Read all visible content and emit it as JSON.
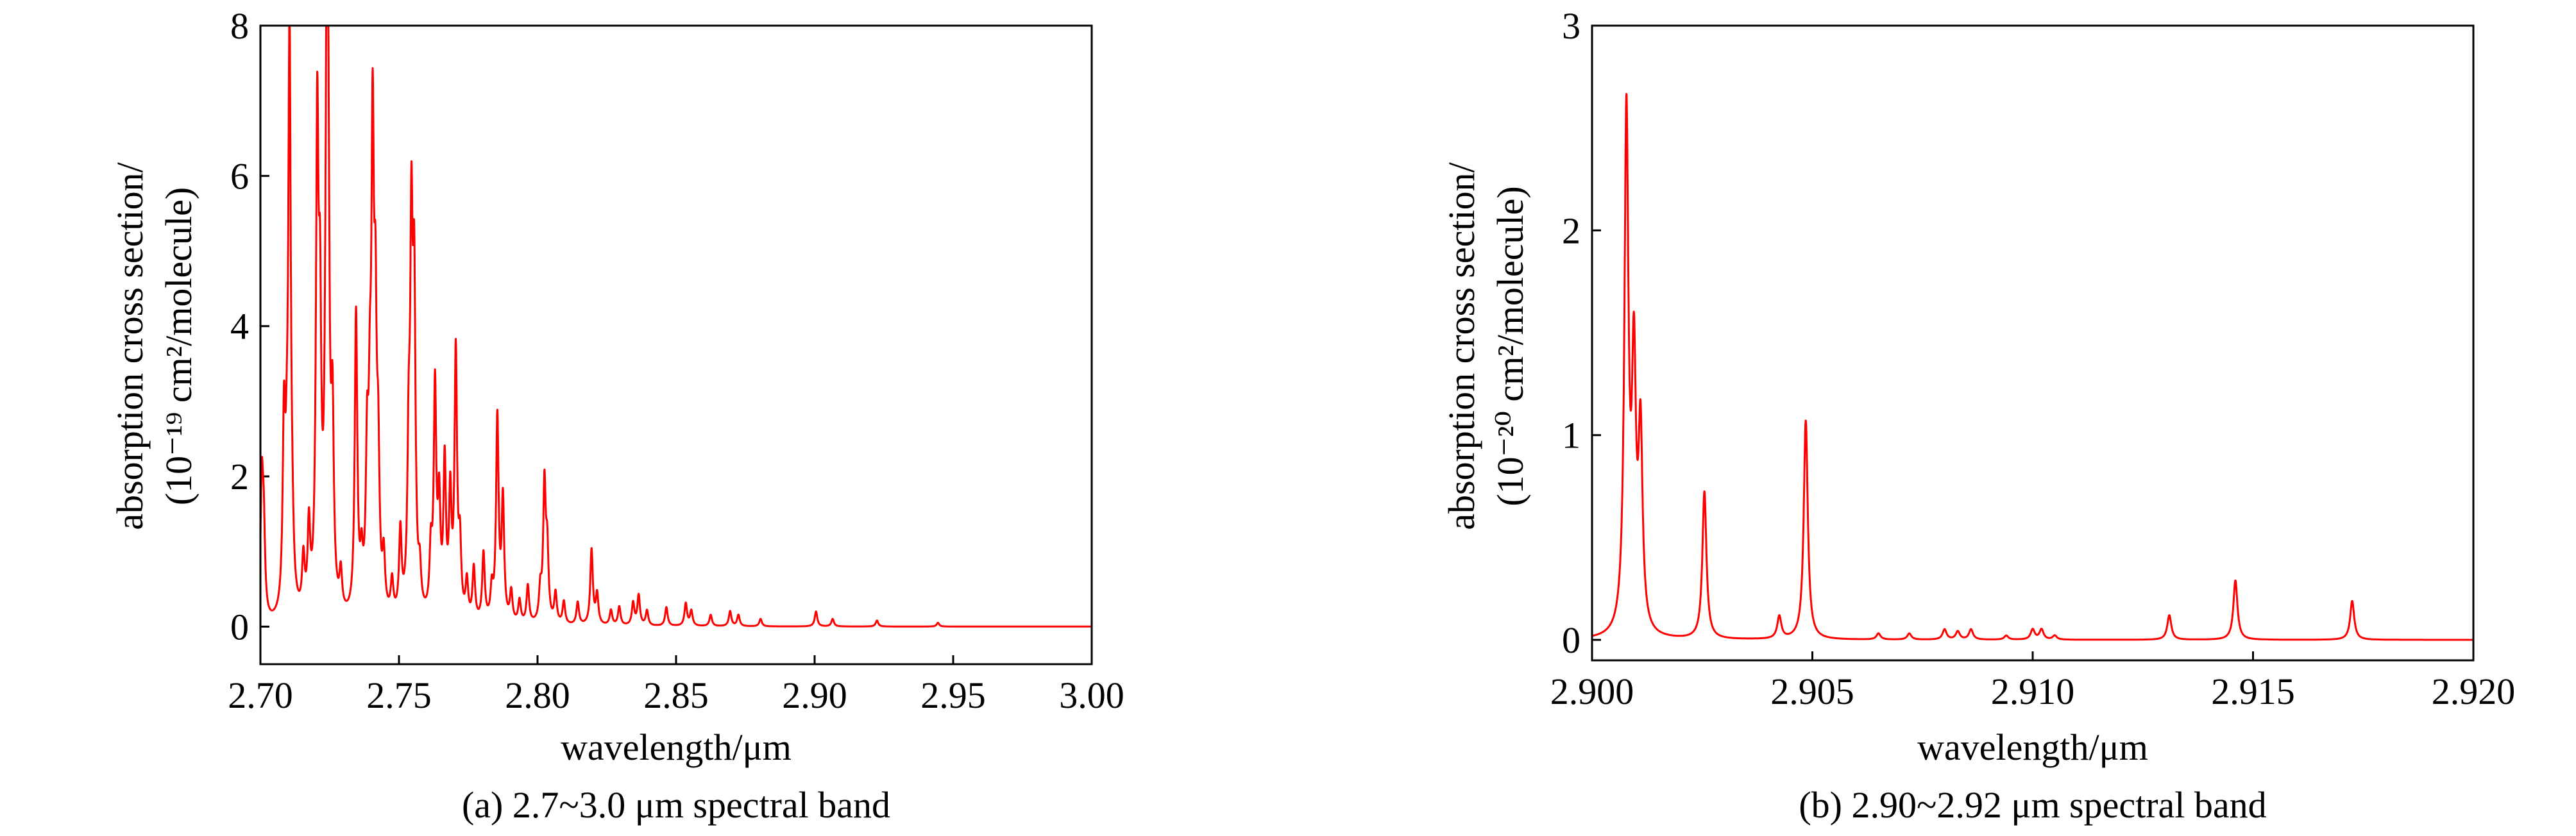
{
  "colors": {
    "series": "#ff0000",
    "axis": "#000000",
    "background": "#ffffff"
  },
  "chart_data": [
    {
      "type": "line",
      "caption": "(a) 2.7~3.0 μm spectral band",
      "xlabel": "wavelength/μm",
      "ylabel_line1": "absorption cross section/",
      "ylabel_line2": "(10⁻¹⁹ cm²/molecule)",
      "xlim": [
        2.7,
        3.0
      ],
      "ylim": [
        -0.5,
        8
      ],
      "xticks": [
        2.7,
        2.75,
        2.8,
        2.85,
        2.9,
        2.95,
        3.0
      ],
      "xtick_labels": [
        "2.70",
        "2.75",
        "2.80",
        "2.85",
        "2.90",
        "2.95",
        "3.00"
      ],
      "yticks": [
        0,
        2,
        4,
        6,
        8
      ],
      "ytick_labels": [
        "0",
        "2",
        "4",
        "6",
        "8"
      ],
      "grid": false,
      "baseline": 0.0,
      "peaks": [
        [
          2.7005,
          1.75
        ],
        [
          2.7012,
          1.1
        ],
        [
          2.7085,
          2.4
        ],
        [
          2.7095,
          1.0
        ],
        [
          2.7105,
          7.6
        ],
        [
          2.7115,
          0.5
        ],
        [
          2.7155,
          0.7
        ],
        [
          2.7175,
          1.1
        ],
        [
          2.7205,
          6.2
        ],
        [
          2.7215,
          3.35
        ],
        [
          2.7235,
          0.8
        ],
        [
          2.724,
          6.95
        ],
        [
          2.7245,
          3.7
        ],
        [
          2.726,
          2.35
        ],
        [
          2.729,
          0.5
        ],
        [
          2.7345,
          4.0
        ],
        [
          2.7365,
          0.6
        ],
        [
          2.7385,
          1.9
        ],
        [
          2.7395,
          1.95
        ],
        [
          2.7405,
          5.85
        ],
        [
          2.7415,
          3.25
        ],
        [
          2.7425,
          1.75
        ],
        [
          2.7445,
          0.7
        ],
        [
          2.7475,
          0.45
        ],
        [
          2.7505,
          1.1
        ],
        [
          2.7535,
          1.9
        ],
        [
          2.7545,
          4.7
        ],
        [
          2.7555,
          4.0
        ],
        [
          2.7575,
          0.5
        ],
        [
          2.7615,
          0.8
        ],
        [
          2.763,
          3.0
        ],
        [
          2.7645,
          1.4
        ],
        [
          2.7665,
          2.0
        ],
        [
          2.7685,
          1.55
        ],
        [
          2.7705,
          3.5
        ],
        [
          2.772,
          0.9
        ],
        [
          2.7745,
          0.5
        ],
        [
          2.777,
          0.7
        ],
        [
          2.7805,
          0.9
        ],
        [
          2.7835,
          0.4
        ],
        [
          2.7855,
          2.7
        ],
        [
          2.7875,
          1.6
        ],
        [
          2.7905,
          0.4
        ],
        [
          2.7935,
          0.3
        ],
        [
          2.7965,
          0.5
        ],
        [
          2.801,
          0.4
        ],
        [
          2.8025,
          1.8
        ],
        [
          2.8035,
          0.9
        ],
        [
          2.8065,
          0.4
        ],
        [
          2.8095,
          0.3
        ],
        [
          2.8145,
          0.3
        ],
        [
          2.8195,
          1.0
        ],
        [
          2.8215,
          0.4
        ],
        [
          2.8265,
          0.2
        ],
        [
          2.8295,
          0.25
        ],
        [
          2.8345,
          0.3
        ],
        [
          2.8365,
          0.4
        ],
        [
          2.8395,
          0.2
        ],
        [
          2.8465,
          0.25
        ],
        [
          2.8535,
          0.3
        ],
        [
          2.8555,
          0.2
        ],
        [
          2.8625,
          0.15
        ],
        [
          2.8695,
          0.2
        ],
        [
          2.8725,
          0.15
        ],
        [
          2.8805,
          0.1
        ],
        [
          2.9005,
          0.2
        ],
        [
          2.9065,
          0.1
        ],
        [
          2.9225,
          0.08
        ],
        [
          2.9445,
          0.05
        ]
      ]
    },
    {
      "type": "line",
      "caption": "(b) 2.90~2.92 μm spectral band",
      "xlabel": "wavelength/μm",
      "ylabel_line1": "absorption cross section/",
      "ylabel_line2": "(10⁻²⁰ cm²/molecule)",
      "xlim": [
        2.9,
        2.92
      ],
      "ylim": [
        -0.1,
        3
      ],
      "xticks": [
        2.9,
        2.905,
        2.91,
        2.915,
        2.92
      ],
      "xtick_labels": [
        "2.900",
        "2.905",
        "2.910",
        "2.915",
        "2.920"
      ],
      "yticks": [
        0,
        1,
        2,
        3
      ],
      "ytick_labels": [
        "0",
        "1",
        "2",
        "3"
      ],
      "grid": false,
      "baseline": 0.0,
      "peaks": [
        [
          2.90078,
          2.52
        ],
        [
          2.90095,
          1.25
        ],
        [
          2.9011,
          0.95
        ],
        [
          2.90255,
          0.72
        ],
        [
          2.90425,
          0.11
        ],
        [
          2.90485,
          1.07
        ],
        [
          2.9065,
          0.03
        ],
        [
          2.9072,
          0.03
        ],
        [
          2.908,
          0.05
        ],
        [
          2.9083,
          0.04
        ],
        [
          2.9086,
          0.05
        ],
        [
          2.9094,
          0.02
        ],
        [
          2.91,
          0.05
        ],
        [
          2.9102,
          0.05
        ],
        [
          2.9105,
          0.02
        ],
        [
          2.9131,
          0.12
        ],
        [
          2.9146,
          0.29
        ],
        [
          2.91725,
          0.19
        ]
      ]
    }
  ]
}
